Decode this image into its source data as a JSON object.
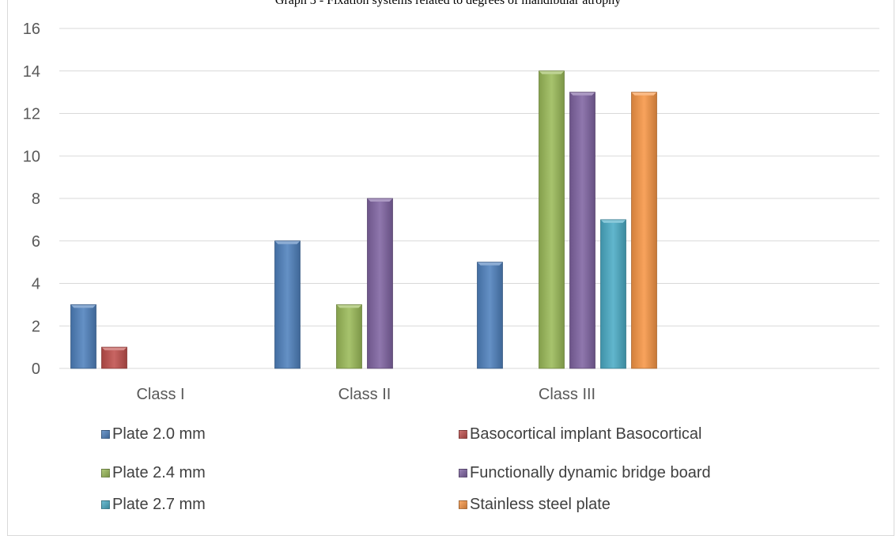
{
  "chart_data": {
    "type": "bar",
    "title": "Graph 3 - Fixation systems related to degrees of mandibular atrophy",
    "categories": [
      "Class I",
      "Class II",
      "Class III"
    ],
    "ylim": [
      0,
      16
    ],
    "yticks": [
      0,
      2,
      4,
      6,
      8,
      10,
      12,
      14,
      16
    ],
    "grid": true,
    "legend_position": "bottom",
    "series": [
      {
        "name": "Plate 2.0 mm",
        "color": "#4f81bd",
        "values": [
          3,
          6,
          5
        ]
      },
      {
        "name": "Basocortical implant Basocortical",
        "color": "#c0504d",
        "values": [
          1,
          0,
          0
        ]
      },
      {
        "name": "Plate 2.4 mm",
        "color": "#9bbb59",
        "values": [
          0,
          3,
          14
        ]
      },
      {
        "name": "Functionally dynamic bridge board",
        "color": "#8064a2",
        "values": [
          0,
          8,
          13
        ]
      },
      {
        "name": "Plate 2.7 mm",
        "color": "#4bacc6",
        "values": [
          0,
          0,
          7
        ]
      },
      {
        "name": "Stainless steel plate",
        "color": "#f79646",
        "values": [
          0,
          0,
          13
        ]
      }
    ]
  }
}
